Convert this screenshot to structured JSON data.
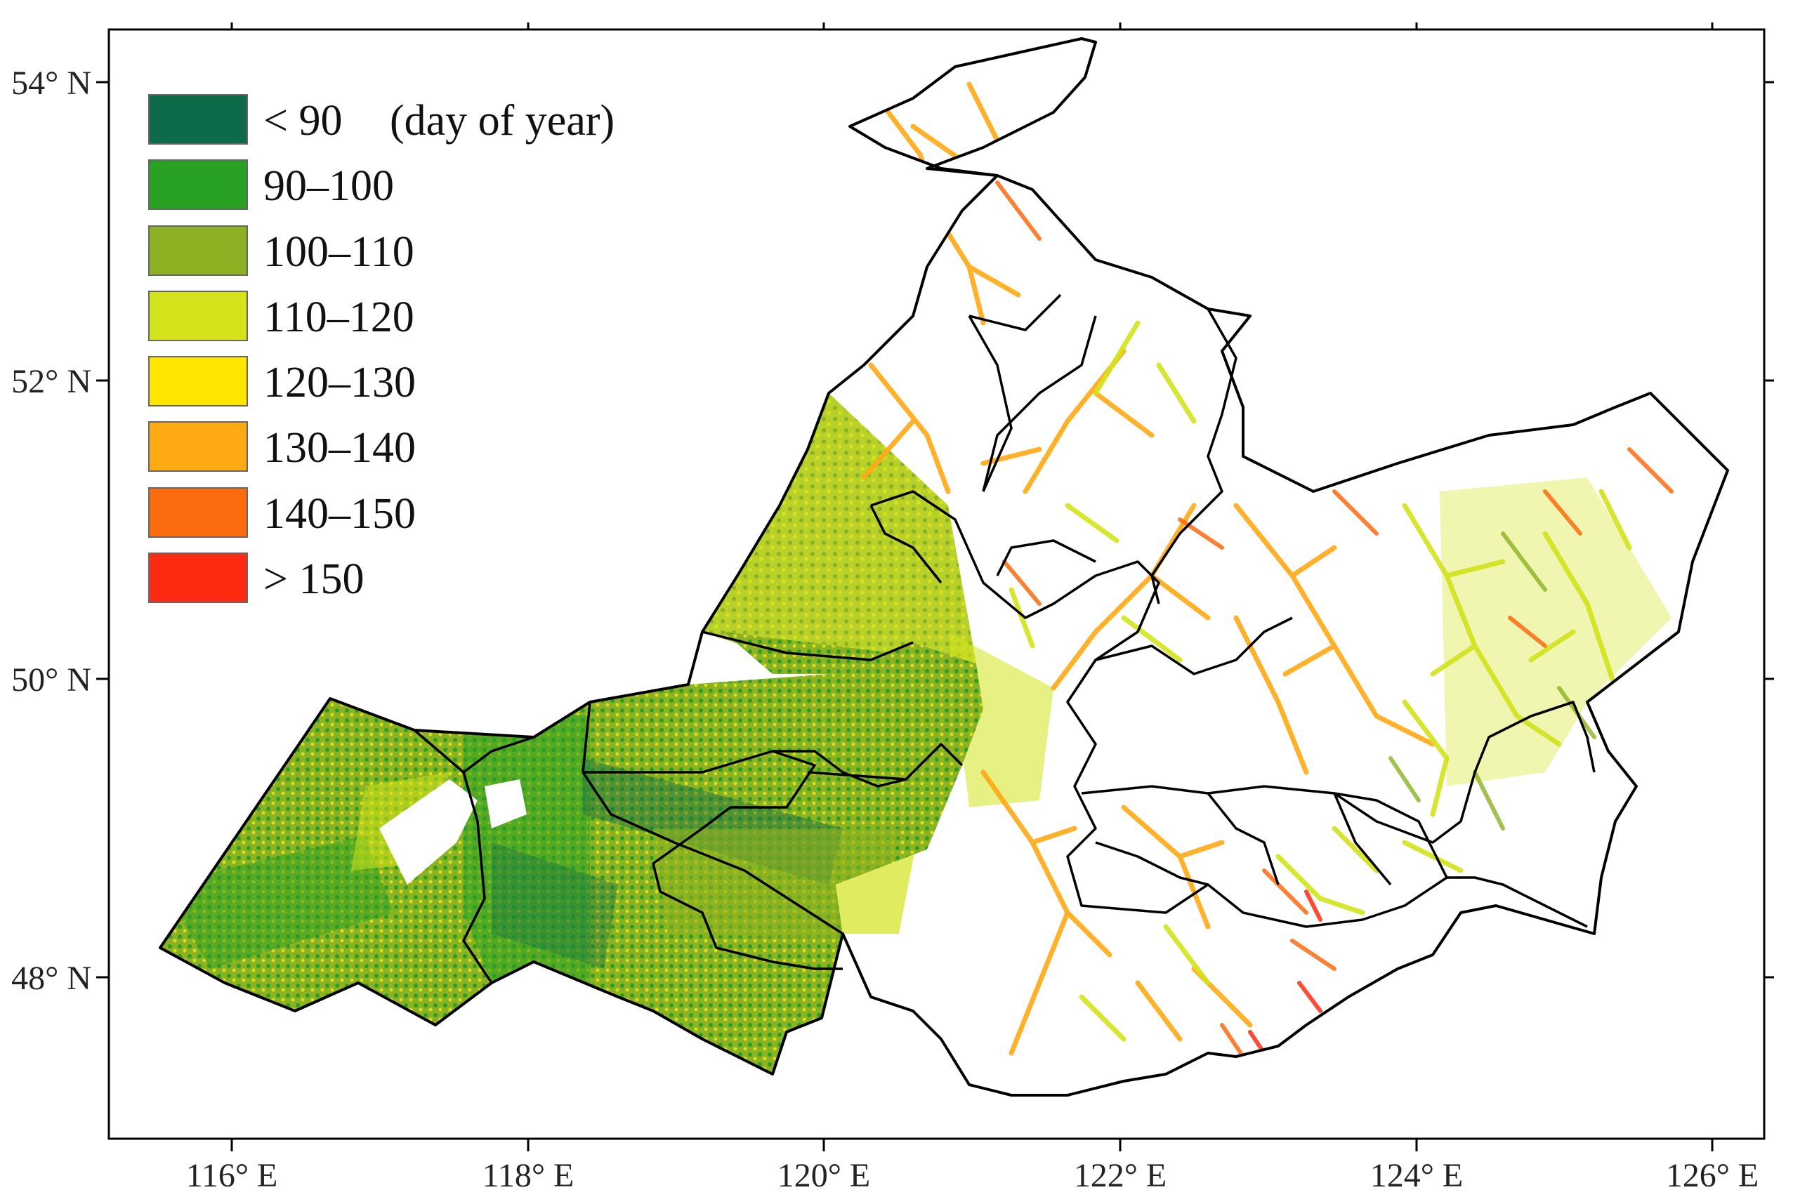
{
  "legend": {
    "unit_note": "(day of year)",
    "classes": [
      {
        "label": "< 90",
        "color": "#0d6b4a"
      },
      {
        "label": "90–100",
        "color": "#27a024"
      },
      {
        "label": "100–110",
        "color": "#8cb122"
      },
      {
        "label": "110–120",
        "color": "#d3e31b"
      },
      {
        "label": "120–130",
        "color": "#ffe600"
      },
      {
        "label": "130–140",
        "color": "#ffa914"
      },
      {
        "label": "140–150",
        "color": "#fb6b10"
      },
      {
        "label": "> 150",
        "color": "#ff2a12"
      }
    ]
  },
  "axes": {
    "lat_labels": [
      "54° N",
      "52° N",
      "50° N",
      "48° N"
    ],
    "lon_labels": [
      "116° E",
      "118° E",
      "120° E",
      "122° E",
      "124° E",
      "126° E"
    ]
  }
}
